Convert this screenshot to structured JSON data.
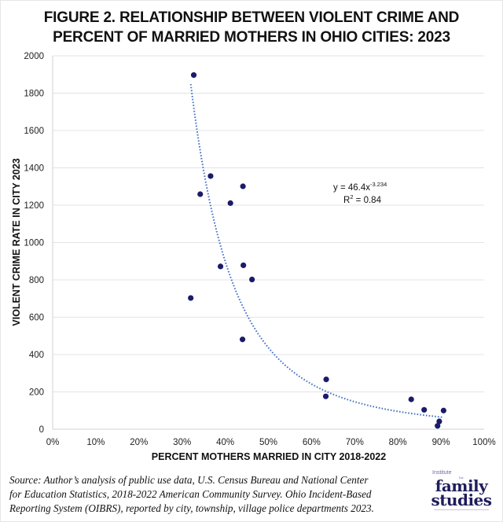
{
  "chart_data": {
    "type": "scatter",
    "title": [
      "FIGURE 2. RELATIONSHIP BETWEEN VIOLENT CRIME AND",
      "PERCENT OF MARRIED MOTHERS IN OHIO CITIES: 2023"
    ],
    "xlabel": "PERCENT MOTHERS MARRIED IN CITY 2018-2022",
    "ylabel": "VIOLENT CRIME RATE IN CITY 2023",
    "xlim": [
      0,
      100
    ],
    "ylim": [
      0,
      2000
    ],
    "x_ticks": [
      0,
      10,
      20,
      30,
      40,
      50,
      60,
      70,
      80,
      90,
      100
    ],
    "x_tick_labels": [
      "0%",
      "10%",
      "20%",
      "30%",
      "40%",
      "50%",
      "60%",
      "70%",
      "80%",
      "90%",
      "100%"
    ],
    "y_ticks": [
      0,
      200,
      400,
      600,
      800,
      1000,
      1200,
      1400,
      1600,
      1800,
      2000
    ],
    "y_tick_labels": [
      "0",
      "200",
      "400",
      "600",
      "800",
      "1000",
      "1200",
      "1400",
      "1600",
      "1800",
      "2000"
    ],
    "grid": "horizontal",
    "legend": "none",
    "series": [
      {
        "name": "Ohio cities",
        "color": "#1b1b6b",
        "points": [
          {
            "x": 32.7,
            "y": 1897
          },
          {
            "x": 36.6,
            "y": 1356
          },
          {
            "x": 34.2,
            "y": 1259
          },
          {
            "x": 44.1,
            "y": 1301
          },
          {
            "x": 41.2,
            "y": 1211
          },
          {
            "x": 38.9,
            "y": 872
          },
          {
            "x": 44.2,
            "y": 878
          },
          {
            "x": 46.2,
            "y": 802
          },
          {
            "x": 32.0,
            "y": 703
          },
          {
            "x": 44.0,
            "y": 481
          },
          {
            "x": 63.4,
            "y": 267
          },
          {
            "x": 63.3,
            "y": 176
          },
          {
            "x": 83.1,
            "y": 160
          },
          {
            "x": 86.1,
            "y": 104
          },
          {
            "x": 90.6,
            "y": 100
          },
          {
            "x": 89.6,
            "y": 42
          },
          {
            "x": 89.2,
            "y": 18
          }
        ]
      }
    ],
    "trendline": {
      "type": "power",
      "a": 46.4,
      "b": -3.234,
      "x_range": [
        32.0,
        90.6
      ],
      "color": "#4472c4",
      "equation_label": "y = 46.4x",
      "equation_exponent": "-3.234",
      "r2_label": "R",
      "r2_sup": "2",
      "r2_value": " = 0.84"
    }
  },
  "source_lines": [
    "Source: Author’s analysis of public use data, U.S. Census Bureau and National Center",
    "for Education Statistics, 2018-2022 American Community Survey. Ohio Incident-Based",
    "Reporting System (OIBRS), reported by city, township, village police departments 2023."
  ],
  "logo": {
    "line1": "Institute",
    "line2": "for",
    "line3": "family",
    "line4": "studies"
  }
}
